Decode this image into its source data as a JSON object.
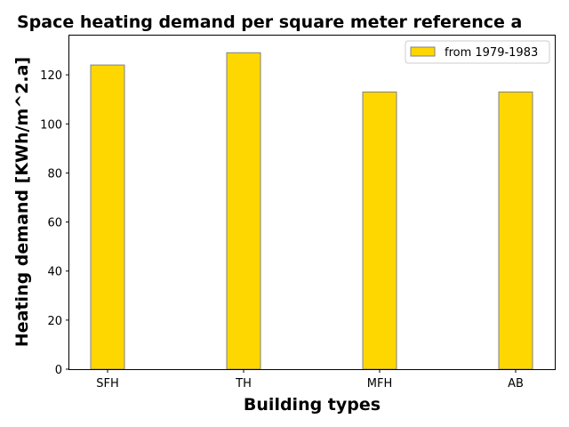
{
  "chart_data": {
    "type": "bar",
    "title": "Space heating demand per square meter reference a",
    "xlabel": "Building types",
    "ylabel": "Heating demand [KWh/m^2.a]",
    "categories": [
      "SFH",
      "TH",
      "MFH",
      "AB"
    ],
    "series": [
      {
        "name": "from 1979-1983",
        "values": [
          124,
          129,
          113,
          113
        ],
        "color": "#FFD700",
        "edge_color": "#808080"
      }
    ],
    "ylim": [
      0,
      136
    ],
    "yticks": [
      0,
      20,
      40,
      60,
      80,
      100,
      120
    ],
    "grid": false,
    "legend_position": "top-right"
  }
}
